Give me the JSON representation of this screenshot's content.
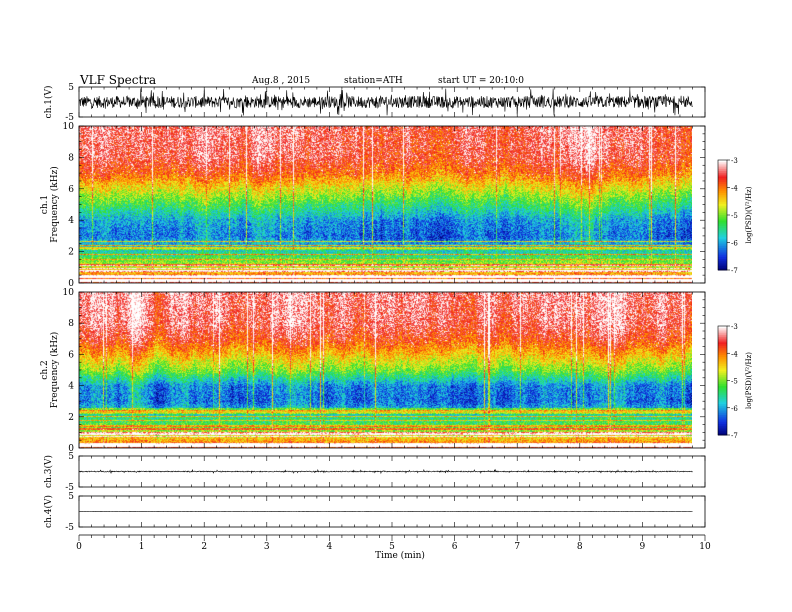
{
  "header": {
    "title": "VLF  Spectra",
    "date": "Aug.8  , 2015",
    "station": "station=ATH",
    "start": "start  UT  =   20:10:0"
  },
  "colors": {
    "spec_low": "#000070",
    "spec_blue": "#1030e0",
    "spec_cyan": "#20d0e0",
    "spec_green": "#30e030",
    "spec_yellow": "#f0f020",
    "spec_orange": "#ff9000",
    "spec_red": "#f02020",
    "spec_high": "#ffffff"
  },
  "chart_data": [
    {
      "type": "line",
      "panel": "ch1-waveform",
      "ylabel": "ch.1(V)",
      "ylim": [
        -5,
        5
      ],
      "yticks": [
        "5",
        "-5"
      ],
      "xlim": [
        0,
        10
      ],
      "data_extent_min": [
        0,
        9.8
      ],
      "note_values": {
        "approx_mean": 0,
        "approx_amplitude": 2
      }
    },
    {
      "type": "heatmap",
      "panel": "ch1-spectrogram",
      "ylabel": "ch.1\nFrequency  (kHz)",
      "ylim": [
        0,
        10
      ],
      "yticks": [
        "0",
        "2",
        "4",
        "6",
        "8",
        "10"
      ],
      "xlim": [
        0,
        10
      ],
      "data_extent_min": [
        0,
        9.8
      ],
      "colorbar": {
        "label": "log(PSD)(V²/Hz)",
        "range": [
          -7,
          -3
        ],
        "ticks": [
          "-3",
          "-4",
          "-5",
          "-6",
          "-7"
        ]
      },
      "profile_by_freq_khz": [
        {
          "f": 0,
          "logpsd": -3.5
        },
        {
          "f": 1,
          "logpsd": -4.6
        },
        {
          "f": 2,
          "logpsd": -5.6
        },
        {
          "f": 3,
          "logpsd": -6.2
        },
        {
          "f": 4,
          "logpsd": -6.0
        },
        {
          "f": 5,
          "logpsd": -5.3
        },
        {
          "f": 6,
          "logpsd": -4.6
        },
        {
          "f": 7,
          "logpsd": -3.9
        },
        {
          "f": 8,
          "logpsd": -3.5
        },
        {
          "f": 10,
          "logpsd": -3.4
        }
      ]
    },
    {
      "type": "heatmap",
      "panel": "ch2-spectrogram",
      "ylabel": "ch.2\nFrequency  (kHz)",
      "ylim": [
        0,
        10
      ],
      "yticks": [
        "0",
        "2",
        "4",
        "6",
        "8",
        "10"
      ],
      "xlim": [
        0,
        10
      ],
      "data_extent_min": [
        0,
        9.8
      ],
      "colorbar": {
        "label": "log(PSD)(V²/Hz)",
        "range": [
          -7,
          -3
        ],
        "ticks": [
          "-3",
          "-4",
          "-5",
          "-6",
          "-7"
        ]
      },
      "profile_by_freq_khz": [
        {
          "f": 0,
          "logpsd": -3.6
        },
        {
          "f": 1,
          "logpsd": -4.8
        },
        {
          "f": 2,
          "logpsd": -5.5
        },
        {
          "f": 3,
          "logpsd": -6.2
        },
        {
          "f": 4,
          "logpsd": -6.1
        },
        {
          "f": 5,
          "logpsd": -5.0
        },
        {
          "f": 6,
          "logpsd": -4.3
        },
        {
          "f": 7,
          "logpsd": -3.7
        },
        {
          "f": 8,
          "logpsd": -3.4
        },
        {
          "f": 10,
          "logpsd": -3.3
        }
      ]
    },
    {
      "type": "line",
      "panel": "ch3-waveform",
      "ylabel": "ch.3(V)",
      "ylim": [
        -5,
        5
      ],
      "yticks": [
        "5",
        "-5"
      ],
      "xlim": [
        0,
        10
      ],
      "data_extent_min": [
        0,
        9.8
      ],
      "note_values": {
        "approx_mean": 0,
        "approx_amplitude": 0.1
      }
    },
    {
      "type": "line",
      "panel": "ch4-waveform",
      "ylabel": "ch.4(V)",
      "ylim": [
        -5,
        5
      ],
      "yticks": [
        "5",
        "-5"
      ],
      "xlim": [
        0,
        10
      ],
      "data_extent_min": [
        0,
        9.8
      ],
      "note_values": {
        "approx_mean": 0,
        "approx_amplitude": 0
      }
    },
    {
      "type": "axis",
      "panel": "time-axis",
      "xlabel": "Time  (min)",
      "xticks": [
        "0",
        "1",
        "2",
        "3",
        "4",
        "5",
        "6",
        "7",
        "8",
        "9",
        "10"
      ],
      "xlim": [
        0,
        10
      ]
    }
  ]
}
